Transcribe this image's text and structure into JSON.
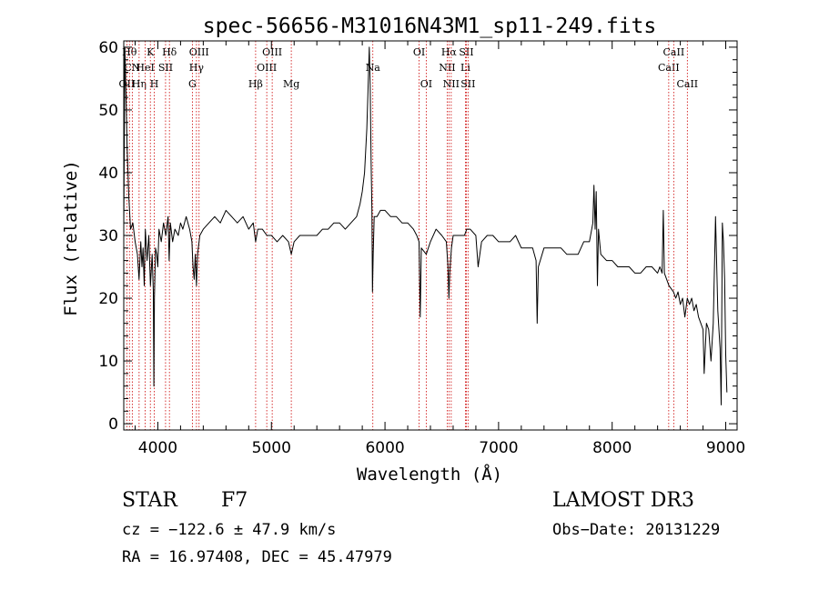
{
  "chart_data": {
    "type": "line",
    "title": "spec-56656-M31016N43M1_sp11-249.fits",
    "xlabel": "Wavelength (Å)",
    "ylabel": "Flux (relative)",
    "xlim": [
      3700,
      9100
    ],
    "ylim": [
      -1,
      61
    ],
    "x_ticks": [
      4000,
      5000,
      6000,
      7000,
      8000,
      9000
    ],
    "x_tick_labels": [
      "4000",
      "5000",
      "6000",
      "7000",
      "8000",
      "9000"
    ],
    "y_ticks": [
      0,
      10,
      20,
      30,
      40,
      50,
      60
    ],
    "y_tick_labels": [
      "0",
      "10",
      "20",
      "30",
      "40",
      "50",
      "60"
    ],
    "x_minor_step": 200,
    "y_minor_step": 2,
    "grid": false,
    "line_color": "#000000",
    "marker_color": "#cc0000",
    "series": [
      {
        "name": "flux",
        "points": [
          [
            3700,
            31
          ],
          [
            3710,
            60
          ],
          [
            3720,
            52
          ],
          [
            3730,
            44
          ],
          [
            3745,
            36
          ],
          [
            3760,
            31
          ],
          [
            3780,
            32
          ],
          [
            3800,
            29
          ],
          [
            3820,
            27
          ],
          [
            3835,
            23
          ],
          [
            3850,
            29
          ],
          [
            3860,
            25
          ],
          [
            3870,
            28
          ],
          [
            3880,
            22
          ],
          [
            3890,
            31
          ],
          [
            3905,
            26
          ],
          [
            3920,
            30
          ],
          [
            3935,
            22
          ],
          [
            3950,
            27
          ],
          [
            3960,
            21
          ],
          [
            3965,
            6
          ],
          [
            3970,
            20
          ],
          [
            3980,
            28
          ],
          [
            3990,
            27
          ],
          [
            4000,
            25
          ],
          [
            4010,
            31
          ],
          [
            4030,
            29
          ],
          [
            4050,
            32
          ],
          [
            4070,
            30
          ],
          [
            4090,
            33
          ],
          [
            4100,
            26
          ],
          [
            4110,
            32
          ],
          [
            4130,
            29
          ],
          [
            4150,
            31
          ],
          [
            4180,
            30
          ],
          [
            4200,
            32
          ],
          [
            4220,
            31
          ],
          [
            4250,
            33
          ],
          [
            4280,
            31
          ],
          [
            4300,
            29
          ],
          [
            4310,
            25
          ],
          [
            4320,
            23
          ],
          [
            4330,
            27
          ],
          [
            4340,
            22
          ],
          [
            4350,
            27
          ],
          [
            4370,
            30
          ],
          [
            4400,
            31
          ],
          [
            4450,
            32
          ],
          [
            4500,
            33
          ],
          [
            4550,
            32
          ],
          [
            4600,
            34
          ],
          [
            4650,
            33
          ],
          [
            4700,
            32
          ],
          [
            4750,
            33
          ],
          [
            4800,
            31
          ],
          [
            4840,
            32
          ],
          [
            4861,
            29
          ],
          [
            4880,
            31
          ],
          [
            4920,
            31
          ],
          [
            4960,
            30
          ],
          [
            5000,
            30
          ],
          [
            5050,
            29
          ],
          [
            5100,
            30
          ],
          [
            5150,
            29
          ],
          [
            5175,
            27
          ],
          [
            5200,
            29
          ],
          [
            5250,
            30
          ],
          [
            5300,
            30
          ],
          [
            5350,
            30
          ],
          [
            5400,
            30
          ],
          [
            5450,
            31
          ],
          [
            5500,
            31
          ],
          [
            5550,
            32
          ],
          [
            5600,
            32
          ],
          [
            5650,
            31
          ],
          [
            5700,
            32
          ],
          [
            5750,
            33
          ],
          [
            5780,
            35
          ],
          [
            5800,
            37
          ],
          [
            5820,
            40
          ],
          [
            5840,
            47
          ],
          [
            5855,
            56
          ],
          [
            5862,
            60
          ],
          [
            5870,
            54
          ],
          [
            5878,
            42
          ],
          [
            5885,
            34
          ],
          [
            5890,
            21
          ],
          [
            5896,
            27
          ],
          [
            5905,
            33
          ],
          [
            5930,
            33
          ],
          [
            5960,
            34
          ],
          [
            6000,
            34
          ],
          [
            6050,
            33
          ],
          [
            6100,
            33
          ],
          [
            6150,
            32
          ],
          [
            6200,
            32
          ],
          [
            6250,
            31
          ],
          [
            6280,
            30
          ],
          [
            6300,
            29
          ],
          [
            6310,
            17
          ],
          [
            6320,
            28
          ],
          [
            6363,
            27
          ],
          [
            6400,
            29
          ],
          [
            6450,
            31
          ],
          [
            6500,
            30
          ],
          [
            6540,
            29
          ],
          [
            6555,
            25
          ],
          [
            6563,
            20
          ],
          [
            6570,
            24
          ],
          [
            6585,
            28
          ],
          [
            6600,
            30
          ],
          [
            6650,
            30
          ],
          [
            6700,
            30
          ],
          [
            6720,
            31
          ],
          [
            6750,
            31
          ],
          [
            6800,
            30
          ],
          [
            6820,
            25
          ],
          [
            6850,
            29
          ],
          [
            6900,
            30
          ],
          [
            6950,
            30
          ],
          [
            7000,
            29
          ],
          [
            7050,
            29
          ],
          [
            7100,
            29
          ],
          [
            7150,
            30
          ],
          [
            7200,
            28
          ],
          [
            7250,
            28
          ],
          [
            7300,
            28
          ],
          [
            7330,
            26
          ],
          [
            7340,
            16
          ],
          [
            7350,
            25
          ],
          [
            7400,
            28
          ],
          [
            7450,
            28
          ],
          [
            7500,
            28
          ],
          [
            7550,
            28
          ],
          [
            7600,
            27
          ],
          [
            7650,
            27
          ],
          [
            7700,
            27
          ],
          [
            7750,
            29
          ],
          [
            7800,
            29
          ],
          [
            7830,
            32
          ],
          [
            7840,
            38
          ],
          [
            7850,
            31
          ],
          [
            7860,
            37
          ],
          [
            7870,
            22
          ],
          [
            7880,
            31
          ],
          [
            7900,
            27
          ],
          [
            7950,
            26
          ],
          [
            8000,
            26
          ],
          [
            8050,
            25
          ],
          [
            8100,
            25
          ],
          [
            8150,
            25
          ],
          [
            8200,
            24
          ],
          [
            8250,
            24
          ],
          [
            8300,
            25
          ],
          [
            8350,
            25
          ],
          [
            8400,
            24
          ],
          [
            8420,
            25
          ],
          [
            8440,
            24
          ],
          [
            8450,
            34
          ],
          [
            8460,
            24
          ],
          [
            8480,
            23
          ],
          [
            8500,
            22
          ],
          [
            8540,
            21
          ],
          [
            8560,
            20
          ],
          [
            8580,
            21
          ],
          [
            8600,
            19
          ],
          [
            8620,
            20
          ],
          [
            8640,
            17
          ],
          [
            8662,
            20
          ],
          [
            8680,
            19
          ],
          [
            8700,
            20
          ],
          [
            8720,
            18
          ],
          [
            8740,
            19
          ],
          [
            8760,
            17
          ],
          [
            8780,
            16
          ],
          [
            8800,
            15
          ],
          [
            8810,
            8
          ],
          [
            8830,
            16
          ],
          [
            8850,
            15
          ],
          [
            8870,
            10
          ],
          [
            8890,
            16
          ],
          [
            8910,
            33
          ],
          [
            8930,
            18
          ],
          [
            8950,
            12
          ],
          [
            8960,
            3
          ],
          [
            8970,
            32
          ],
          [
            8980,
            29
          ],
          [
            8990,
            23
          ],
          [
            9000,
            11
          ],
          [
            9010,
            5
          ]
        ]
      }
    ],
    "line_markers": [
      {
        "x": 3727,
        "label": "OII",
        "row": 3
      },
      {
        "x": 3750,
        "label": "Hθ",
        "row": 1
      },
      {
        "x": 3775,
        "label": "CN",
        "row": 2
      },
      {
        "x": 3835,
        "label": "Hη",
        "row": 3
      },
      {
        "x": 3889,
        "label": "HeI",
        "row": 2
      },
      {
        "x": 3934,
        "label": "K",
        "row": 1
      },
      {
        "x": 3969,
        "label": "H",
        "row": 3
      },
      {
        "x": 4068,
        "label": "SII",
        "row": 2
      },
      {
        "x": 4102,
        "label": "Hδ",
        "row": 1
      },
      {
        "x": 4304,
        "label": "G",
        "row": 3
      },
      {
        "x": 4340,
        "label": "Hγ",
        "row": 2
      },
      {
        "x": 4363,
        "label": "OIII",
        "row": 1
      },
      {
        "x": 4861,
        "label": "Hβ",
        "row": 3
      },
      {
        "x": 4959,
        "label": "OIII",
        "row": 2
      },
      {
        "x": 5007,
        "label": "OIII",
        "row": 1
      },
      {
        "x": 5175,
        "label": "Mg",
        "row": 3
      },
      {
        "x": 5893,
        "label": "Na",
        "row": 2
      },
      {
        "x": 6300,
        "label": "OI",
        "row": 1
      },
      {
        "x": 6363,
        "label": "OI",
        "row": 3
      },
      {
        "x": 6548,
        "label": "NII",
        "row": 2
      },
      {
        "x": 6563,
        "label": "Hα",
        "row": 1
      },
      {
        "x": 6583,
        "label": "NII",
        "row": 3
      },
      {
        "x": 6708,
        "label": "Li",
        "row": 2
      },
      {
        "x": 6716,
        "label": "SII",
        "row": 1
      },
      {
        "x": 6731,
        "label": "SII",
        "row": 3
      },
      {
        "x": 8498,
        "label": "CaII",
        "row": 2
      },
      {
        "x": 8542,
        "label": "CaII",
        "row": 1
      },
      {
        "x": 8662,
        "label": "CaII",
        "row": 3
      }
    ]
  },
  "info": {
    "object_type": "STAR",
    "subclass": "F7",
    "survey": "LAMOST DR3",
    "cz": "cz = −122.6 ± 47.9 km/s",
    "obs_date": "Obs−Date: 20131229",
    "coords": "RA =  16.97408, DEC =  45.47979"
  }
}
